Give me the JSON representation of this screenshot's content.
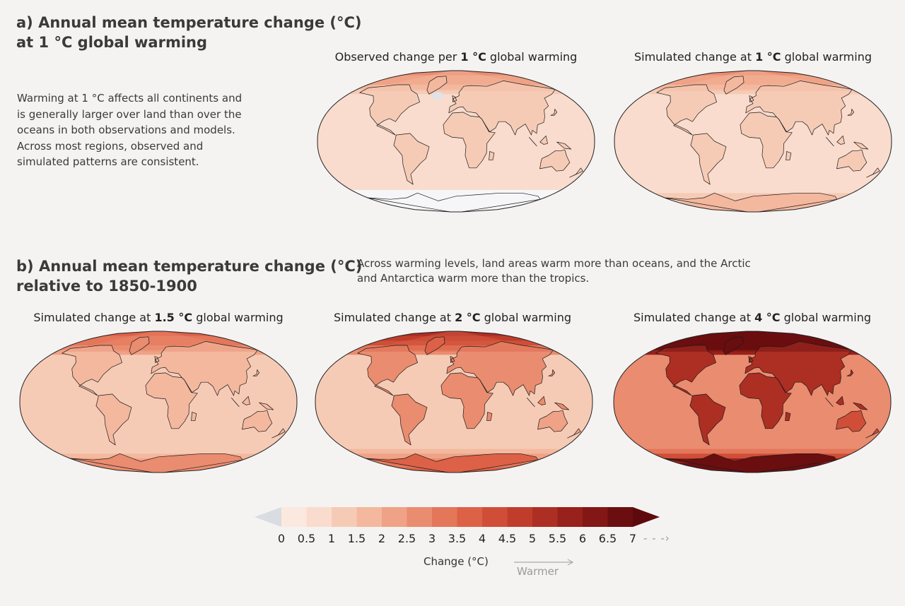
{
  "panel_a": {
    "title_line1": "a) Annual mean temperature change (°C)",
    "title_line2": "at 1 °C global warming",
    "description": [
      "Warming at 1 °C affects all continents and",
      "is generally larger over land than over the",
      "oceans in both observations and models.",
      "Across most regions, observed and",
      "simulated patterns are consistent."
    ],
    "maps": [
      {
        "prefix": "Observed change per ",
        "bold": "1 °C",
        "suffix": " global warming",
        "level": 1,
        "observed": true
      },
      {
        "prefix": "Simulated change at ",
        "bold": "1 °C",
        "suffix": " global warming",
        "level": 1,
        "observed": false
      }
    ]
  },
  "panel_b": {
    "title_line1": "b) Annual mean temperature change (°C)",
    "title_line2": "relative to 1850-1900",
    "note_line1": "Across warming levels, land areas warm more than oceans, and the Arctic",
    "note_line2": "and Antarctica warm more than the tropics.",
    "maps": [
      {
        "prefix": "Simulated change at ",
        "bold": "1.5 °C",
        "suffix": " global warming",
        "level": 1.5
      },
      {
        "prefix": "Simulated change at ",
        "bold": "2 °C",
        "suffix": " global warming",
        "level": 2
      },
      {
        "prefix": "Simulated change at ",
        "bold": "4 °C",
        "suffix": " global warming",
        "level": 4
      }
    ]
  },
  "colorbar": {
    "ticks": [
      "0",
      "0.5",
      "1",
      "1.5",
      "2",
      "2.5",
      "3",
      "3.5",
      "4",
      "4.5",
      "5",
      "5.5",
      "6",
      "6.5",
      "7"
    ],
    "colors": [
      "#fbe9e0",
      "#f9dccd",
      "#f6cbb6",
      "#f3b89e",
      "#efa286",
      "#ea8c6f",
      "#e4765a",
      "#dc6147",
      "#d04e38",
      "#c03d2c",
      "#ad2e23",
      "#98211b",
      "#821715",
      "#6b0e10"
    ],
    "below_color": "#d9dde1",
    "above_color": "#5e0a0c",
    "title": "Change (°C)",
    "warmer_label": "Warmer"
  }
}
